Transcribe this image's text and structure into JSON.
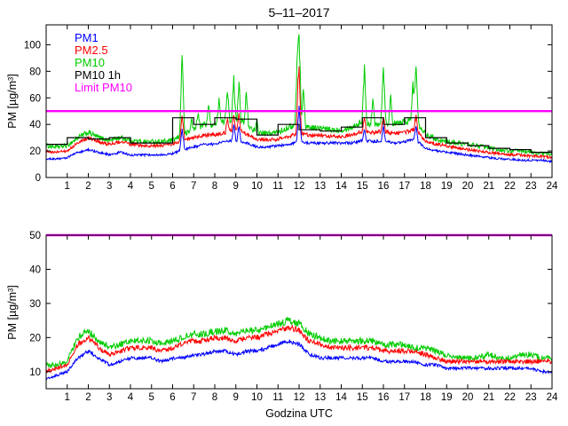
{
  "title": "5–11–2017",
  "axes": {
    "ylabel": "PM [µg/m³]",
    "xlabel": "Godzina UTC"
  },
  "colors": {
    "pm1": "#0000ff",
    "pm25": "#ff0000",
    "pm10": "#00cc00",
    "pm10_1h": "#000000",
    "limit": "#ff00ff",
    "axis": "#000000",
    "bg": "#ffffff"
  },
  "legend": {
    "items": [
      {
        "label": "PM1",
        "color": "#0000ff"
      },
      {
        "label": "PM2.5",
        "color": "#ff0000"
      },
      {
        "label": "PM10",
        "color": "#00cc00"
      },
      {
        "label": "PM10 1h",
        "color": "#000000"
      },
      {
        "label": "Limit PM10",
        "color": "#ff00ff"
      }
    ]
  },
  "chart_data": [
    {
      "type": "line",
      "title": "5–11–2017",
      "xlabel": "",
      "ylabel": "PM [µg/m³]",
      "xlim": [
        0,
        24
      ],
      "ylim": [
        0,
        115
      ],
      "xticks": [
        1,
        2,
        3,
        4,
        5,
        6,
        7,
        8,
        9,
        10,
        11,
        12,
        13,
        14,
        15,
        16,
        17,
        18,
        19,
        20,
        21,
        22,
        23,
        24
      ],
      "yticks": [
        0,
        20,
        40,
        60,
        80,
        100
      ],
      "x_start": 0,
      "x_step": 0.5,
      "series": [
        {
          "name": "PM10",
          "color": "#00cc00",
          "noise": 1.6,
          "values": [
            24,
            23,
            24,
            30,
            34,
            30,
            28,
            30,
            28,
            27,
            27,
            27,
            28,
            32,
            36,
            40,
            40,
            42,
            45,
            40,
            34,
            33,
            34,
            38,
            40,
            38,
            37,
            36,
            36,
            38,
            42,
            40,
            42,
            40,
            42,
            44,
            33,
            29,
            27,
            26,
            25,
            24,
            22,
            21,
            20,
            20,
            19,
            18,
            18
          ],
          "spikes": [
            {
              "x": 6.45,
              "h": 62,
              "w": 0.12
            },
            {
              "x": 6.9,
              "h": 10,
              "w": 0.08
            },
            {
              "x": 7.2,
              "h": 12,
              "w": 0.1
            },
            {
              "x": 7.7,
              "h": 15,
              "w": 0.1
            },
            {
              "x": 8.2,
              "h": 20,
              "w": 0.1
            },
            {
              "x": 8.6,
              "h": 25,
              "w": 0.12
            },
            {
              "x": 8.9,
              "h": 30,
              "w": 0.1
            },
            {
              "x": 9.15,
              "h": 30,
              "w": 0.1
            },
            {
              "x": 9.5,
              "h": 25,
              "w": 0.1
            },
            {
              "x": 10.0,
              "h": 8,
              "w": 0.08
            },
            {
              "x": 11.9,
              "h": 40,
              "w": 0.1
            },
            {
              "x": 12.0,
              "h": 68,
              "w": 0.12
            },
            {
              "x": 12.2,
              "h": 30,
              "w": 0.1
            },
            {
              "x": 15.1,
              "h": 40,
              "w": 0.12
            },
            {
              "x": 15.5,
              "h": 18,
              "w": 0.1
            },
            {
              "x": 16.0,
              "h": 42,
              "w": 0.12
            },
            {
              "x": 16.35,
              "h": 22,
              "w": 0.1
            },
            {
              "x": 17.4,
              "h": 28,
              "w": 0.1
            },
            {
              "x": 17.55,
              "h": 45,
              "w": 0.12
            }
          ]
        },
        {
          "name": "PM2.5",
          "color": "#ff0000",
          "noise": 1.1,
          "values": [
            20,
            19,
            20,
            26,
            30,
            27,
            25,
            27,
            25,
            24,
            24,
            24,
            25,
            28,
            30,
            32,
            32,
            34,
            36,
            33,
            29,
            28,
            29,
            31,
            33,
            32,
            32,
            31,
            31,
            32,
            35,
            34,
            35,
            33,
            34,
            36,
            28,
            25,
            24,
            22,
            21,
            20,
            19,
            18,
            17,
            17,
            16,
            16,
            15
          ],
          "spikes": [
            {
              "x": 6.45,
              "h": 18,
              "w": 0.12
            },
            {
              "x": 8.6,
              "h": 10,
              "w": 0.1
            },
            {
              "x": 8.9,
              "h": 12,
              "w": 0.1
            },
            {
              "x": 9.15,
              "h": 12,
              "w": 0.1
            },
            {
              "x": 11.95,
              "h": 20,
              "w": 0.1
            },
            {
              "x": 12.0,
              "h": 38,
              "w": 0.12
            },
            {
              "x": 15.1,
              "h": 10,
              "w": 0.1
            },
            {
              "x": 16.0,
              "h": 12,
              "w": 0.1
            },
            {
              "x": 17.55,
              "h": 12,
              "w": 0.1
            }
          ]
        },
        {
          "name": "PM1",
          "color": "#0000ff",
          "noise": 0.9,
          "values": [
            14,
            14,
            15,
            19,
            21,
            19,
            17,
            19,
            17,
            17,
            17,
            17,
            18,
            21,
            23,
            25,
            25,
            27,
            28,
            26,
            23,
            23,
            24,
            25,
            27,
            26,
            26,
            26,
            26,
            26,
            28,
            27,
            28,
            26,
            27,
            29,
            22,
            20,
            19,
            18,
            17,
            16,
            15,
            14,
            14,
            13,
            13,
            13,
            12
          ],
          "spikes": [
            {
              "x": 6.45,
              "h": 16,
              "w": 0.12
            },
            {
              "x": 8.9,
              "h": 12,
              "w": 0.1
            },
            {
              "x": 9.15,
              "h": 12,
              "w": 0.1
            },
            {
              "x": 12.0,
              "h": 26,
              "w": 0.12
            },
            {
              "x": 15.1,
              "h": 9,
              "w": 0.1
            },
            {
              "x": 16.0,
              "h": 10,
              "w": 0.1
            },
            {
              "x": 17.55,
              "h": 10,
              "w": 0.1
            }
          ]
        }
      ],
      "step_series": {
        "name": "PM10 1h",
        "color": "#000000",
        "hourly": [
          25,
          30,
          29,
          30,
          26,
          26,
          45,
          40,
          45,
          44,
          32,
          40,
          36,
          35,
          38,
          45,
          40,
          45,
          30,
          26,
          24,
          22,
          21,
          19
        ]
      },
      "limit": {
        "name": "Limit PM10",
        "color": "#ff00ff",
        "value": 50
      }
    },
    {
      "type": "line",
      "title": "",
      "xlabel": "Godzina UTC",
      "ylabel": "PM [µg/m³]",
      "xlim": [
        0,
        24
      ],
      "ylim": [
        5,
        50
      ],
      "xticks": [
        1,
        2,
        3,
        4,
        5,
        6,
        7,
        8,
        9,
        10,
        11,
        12,
        13,
        14,
        15,
        16,
        17,
        18,
        19,
        20,
        21,
        22,
        23,
        24
      ],
      "yticks": [
        10,
        20,
        30,
        40,
        50
      ],
      "x_start": 0,
      "x_step": 0.5,
      "series": [
        {
          "name": "PM10",
          "color": "#00cc00",
          "noise": 1.0,
          "values": [
            12,
            12,
            13,
            20,
            22,
            19,
            17,
            18,
            19,
            19,
            19,
            18,
            19,
            20,
            21,
            21,
            22,
            22,
            21,
            22,
            22,
            23,
            24,
            25,
            24,
            21,
            20,
            19,
            19,
            19,
            19,
            19,
            18,
            18,
            18,
            17,
            17,
            16,
            15,
            14,
            14,
            14,
            15,
            14,
            14,
            15,
            15,
            14,
            14
          ],
          "spikes": []
        },
        {
          "name": "PM2.5",
          "color": "#ff0000",
          "noise": 0.8,
          "values": [
            10,
            11,
            12,
            18,
            20,
            17,
            15,
            16,
            17,
            17,
            17,
            16,
            17,
            18,
            19,
            19,
            20,
            20,
            19,
            20,
            20,
            21,
            22,
            23,
            22,
            19,
            18,
            17,
            17,
            17,
            17,
            17,
            16,
            16,
            16,
            16,
            15,
            14,
            13,
            13,
            13,
            13,
            13,
            13,
            13,
            13,
            13,
            13,
            13
          ],
          "spikes": []
        },
        {
          "name": "PM1",
          "color": "#0000ff",
          "noise": 0.6,
          "values": [
            8,
            9,
            10,
            14,
            16,
            14,
            12,
            13,
            14,
            14,
            14,
            13,
            14,
            14,
            15,
            15,
            16,
            16,
            15,
            16,
            16,
            17,
            18,
            19,
            18,
            15,
            14,
            14,
            14,
            14,
            14,
            14,
            13,
            13,
            13,
            13,
            12,
            12,
            11,
            11,
            11,
            11,
            11,
            11,
            11,
            11,
            11,
            10,
            10
          ],
          "spikes": []
        }
      ],
      "limit": {
        "name": "Limit PM10",
        "color": "#ff00ff",
        "value": 50
      }
    }
  ]
}
